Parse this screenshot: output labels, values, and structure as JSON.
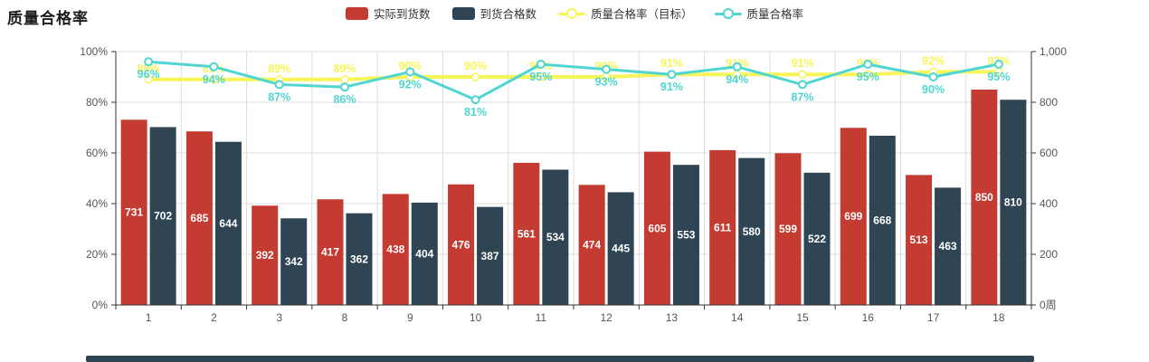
{
  "title": "质量合格率",
  "legend": [
    {
      "label": "实际到货数",
      "type": "bar",
      "icon": "bar-swatch-red-icon",
      "color": "#c43b32"
    },
    {
      "label": "到货合格数",
      "type": "bar",
      "icon": "bar-swatch-navy-icon",
      "color": "#2f4554"
    },
    {
      "label": "质量合格率（目标）",
      "type": "line",
      "icon": "line-circle-yellow-icon",
      "color": "#f8f558"
    },
    {
      "label": "质量合格率",
      "type": "line",
      "icon": "line-circle-cyan-icon",
      "color": "#4fd6d2"
    }
  ],
  "chart_data": {
    "type": "bar",
    "title": "质量合格率",
    "categories": [
      "1",
      "2",
      "3",
      "8",
      "9",
      "10",
      "11",
      "12",
      "13",
      "14",
      "15",
      "16",
      "17",
      "18"
    ],
    "series": [
      {
        "name": "实际到货数",
        "type": "bar",
        "axis": "right",
        "color": "#c43b32",
        "values": [
          731,
          685,
          392,
          417,
          438,
          476,
          561,
          474,
          605,
          611,
          599,
          699,
          513,
          850
        ]
      },
      {
        "name": "到货合格数",
        "type": "bar",
        "axis": "right",
        "color": "#2f4554",
        "values": [
          702,
          644,
          342,
          362,
          404,
          387,
          534,
          445,
          553,
          580,
          522,
          668,
          463,
          810
        ]
      },
      {
        "name": "质量合格率（目标）",
        "type": "line",
        "axis": "left",
        "color": "#f8f558",
        "label_position": "top",
        "values": [
          89,
          89,
          89,
          89,
          90,
          90,
          90,
          90,
          91,
          91,
          91,
          91,
          92,
          92
        ]
      },
      {
        "name": "质量合格率",
        "type": "line",
        "axis": "left",
        "color": "#4fd6d2",
        "label_position": "bottom",
        "values": [
          96,
          94,
          87,
          86,
          92,
          81,
          95,
          93,
          91,
          94,
          87,
          95,
          90,
          95
        ]
      }
    ],
    "y_axis_left": {
      "min": 0,
      "max": 100,
      "step": 20,
      "unit": "%",
      "labels": [
        "0%",
        "20%",
        "40%",
        "60%",
        "80%",
        "100%"
      ]
    },
    "y_axis_right": {
      "min": 0,
      "max": 1000,
      "step": 200,
      "name": "周",
      "labels": [
        "0周",
        "200",
        "400",
        "600",
        "800",
        "1,000"
      ]
    },
    "label_suffix": "%",
    "grid": true,
    "legend_position": "top"
  }
}
